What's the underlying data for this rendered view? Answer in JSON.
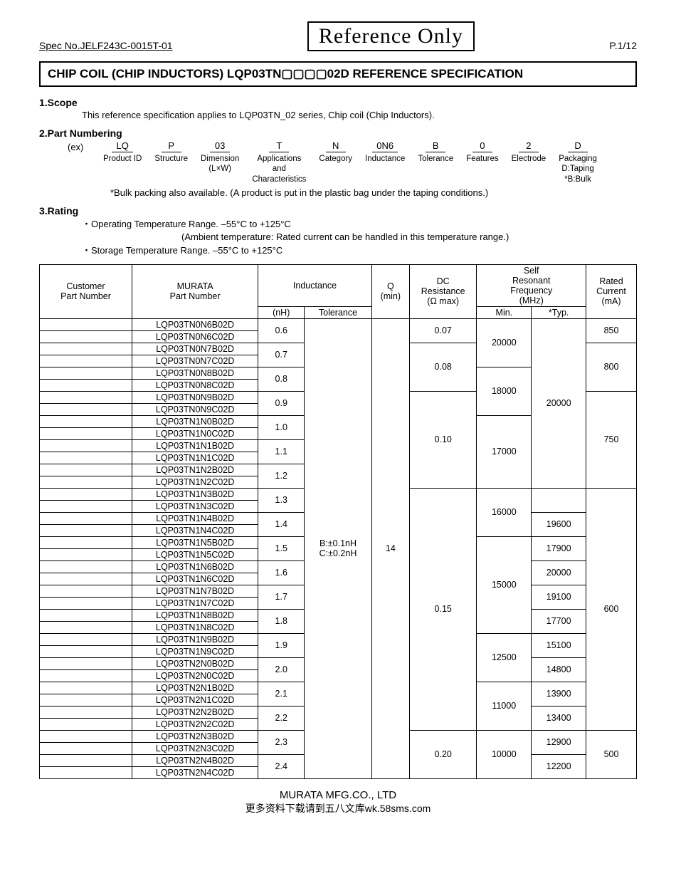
{
  "header": {
    "spec_no": "Spec No.JELF243C-0015T-01",
    "ref_only": "Reference Only",
    "page": "P.1/12"
  },
  "title": "CHIP COIL (CHIP INDUCTORS) LQP03TN▢▢▢▢02D   REFERENCE SPECIFICATION",
  "scope": {
    "heading": "1.Scope",
    "text": "This reference specification applies to LQP03TN_02 series, Chip coil (Chip Inductors)."
  },
  "partnum": {
    "heading": "2.Part Numbering",
    "ex": "(ex)",
    "cols": [
      {
        "code": "LQ",
        "label": "Product ID"
      },
      {
        "code": "P",
        "label": "Structure"
      },
      {
        "code": "03",
        "label": "Dimension\n(L×W)"
      },
      {
        "code": "T",
        "label": "Applications\nand\nCharacteristics"
      },
      {
        "code": "N",
        "label": "Category"
      },
      {
        "code": "0N6",
        "label": "Inductance"
      },
      {
        "code": "B",
        "label": "Tolerance"
      },
      {
        "code": "0",
        "label": "Features"
      },
      {
        "code": "2",
        "label": "Electrode"
      },
      {
        "code": "D",
        "label": "Packaging\nD:Taping\n*B:Bulk"
      }
    ],
    "note": "*Bulk packing also available. (A product is put in the plastic bag under the taping conditions.)"
  },
  "rating": {
    "heading": "3.Rating",
    "line1": "・Operating Temperature Range. –55°C to +125°C",
    "line1sub": "(Ambient temperature: Rated current can be handled in this temperature range.)",
    "line2": "・Storage Temperature Range.   –55°C to +125°C"
  },
  "table": {
    "headers": {
      "customer": "Customer\nPart Number",
      "murata": "MURATA\nPart Number",
      "inductance": "Inductance",
      "ind_nh": "(nH)",
      "ind_tol": "Tolerance",
      "q": "Q\n(min)",
      "dcr": "DC\nResistance\n(Ω  max)",
      "srf": "Self\nResonant\nFrequency\n(MHz)",
      "srf_min": "Min.",
      "srf_typ": "*Typ.",
      "rated": "Rated\nCurrent\n(mA)"
    },
    "tolerance_cell": "B:±0.1nH\nC:±0.2nH",
    "q_cell": "14",
    "parts": [
      "LQP03TN0N6B02D",
      "LQP03TN0N6C02D",
      "LQP03TN0N7B02D",
      "LQP03TN0N7C02D",
      "LQP03TN0N8B02D",
      "LQP03TN0N8C02D",
      "LQP03TN0N9B02D",
      "LQP03TN0N9C02D",
      "LQP03TN1N0B02D",
      "LQP03TN1N0C02D",
      "LQP03TN1N1B02D",
      "LQP03TN1N1C02D",
      "LQP03TN1N2B02D",
      "LQP03TN1N2C02D",
      "LQP03TN1N3B02D",
      "LQP03TN1N3C02D",
      "LQP03TN1N4B02D",
      "LQP03TN1N4C02D",
      "LQP03TN1N5B02D",
      "LQP03TN1N5C02D",
      "LQP03TN1N6B02D",
      "LQP03TN1N6C02D",
      "LQP03TN1N7B02D",
      "LQP03TN1N7C02D",
      "LQP03TN1N8B02D",
      "LQP03TN1N8C02D",
      "LQP03TN1N9B02D",
      "LQP03TN1N9C02D",
      "LQP03TN2N0B02D",
      "LQP03TN2N0C02D",
      "LQP03TN2N1B02D",
      "LQP03TN2N1C02D",
      "LQP03TN2N2B02D",
      "LQP03TN2N2C02D",
      "LQP03TN2N3B02D",
      "LQP03TN2N3C02D",
      "LQP03TN2N4B02D",
      "LQP03TN2N4C02D"
    ],
    "nh_values": [
      "0.6",
      "0.7",
      "0.8",
      "0.9",
      "1.0",
      "1.1",
      "1.2",
      "1.3",
      "1.4",
      "1.5",
      "1.6",
      "1.7",
      "1.8",
      "1.9",
      "2.0",
      "2.1",
      "2.2",
      "2.3",
      "2.4"
    ],
    "dcr": {
      "v07": "0.07",
      "v08": "0.08",
      "v10": "0.10",
      "v15": "0.15",
      "v20": "0.20"
    },
    "srf_min": {
      "s20000": "20000",
      "s18000": "18000",
      "s17000": "17000",
      "s16000": "16000",
      "s15000": "15000",
      "s12500": "12500",
      "s11000": "11000",
      "s10000": "10000"
    },
    "srf_typ": {
      "t20000": "20000",
      "t19600": "19600",
      "t17900": "17900",
      "t20000b": "20000",
      "t19100": "19100",
      "t17700": "17700",
      "t15100": "15100",
      "t14800": "14800",
      "t13900": "13900",
      "t13400": "13400",
      "t12900": "12900",
      "t12200": "12200"
    },
    "rated": {
      "r850": "850",
      "r800": "800",
      "r750": "750",
      "r600": "600",
      "r500": "500"
    }
  },
  "footer": {
    "company": "MURATA MFG.CO., LTD",
    "cn": "更多资料下载请到五八文库wk.58sms.com"
  },
  "style": {
    "border_color": "#000000",
    "bg_color": "#ffffff",
    "font_size_body": 13,
    "font_size_table": 12.5
  }
}
